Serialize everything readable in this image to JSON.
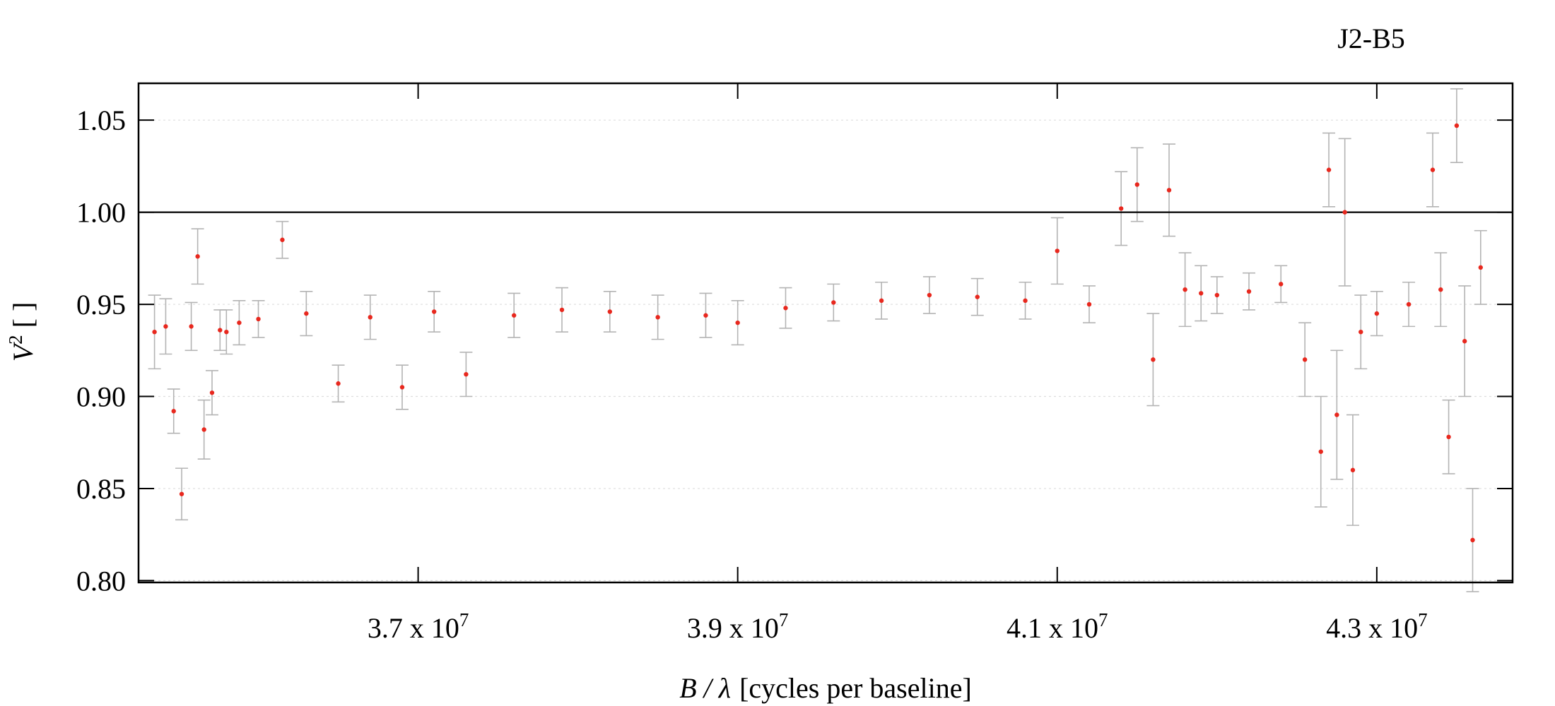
{
  "chart_data": {
    "type": "scatter",
    "title": "J2-B5",
    "xlabel": {
      "var": "B / λ",
      "unit": "[cycles per baseline]"
    },
    "ylabel": {
      "var": "V",
      "sup": "2",
      "unit": "[ ]"
    },
    "xlim": [
      35250000,
      43850000
    ],
    "ylim": [
      0.799,
      1.07
    ],
    "x_ticks": [
      {
        "value": 37000000,
        "mantissa": "3.7",
        "times": " x 10",
        "exp": "7"
      },
      {
        "value": 39000000,
        "mantissa": "3.9",
        "times": " x 10",
        "exp": "7"
      },
      {
        "value": 41000000,
        "mantissa": "4.1",
        "times": " x 10",
        "exp": "7"
      },
      {
        "value": 43000000,
        "mantissa": "4.3",
        "times": " x 10",
        "exp": "7"
      }
    ],
    "y_ticks": [
      "0.80",
      "0.85",
      "0.90",
      "0.95",
      "1.00",
      "1.05"
    ],
    "reference_line": 1.0,
    "grid": true,
    "colors": {
      "points": "#e8281e",
      "errorbars": "#b4b4b4",
      "axes": "#000000",
      "grid": "#dddddd"
    },
    "series": [
      {
        "x": [
          35350000,
          35420000,
          35470000,
          35520000,
          35580000,
          35620000,
          35660000,
          35710000,
          35760000,
          35800000,
          35880000,
          36000000,
          36150000,
          36300000,
          36500000,
          36700000,
          36900000,
          37100000,
          37300000,
          37600000,
          37900000,
          38200000,
          38500000,
          38800000,
          39000000,
          39300000,
          39600000,
          39900000,
          40200000,
          40500000,
          40800000,
          41000000,
          41200000,
          41400000,
          41500000,
          41600000,
          41700000,
          41800000,
          41900000,
          42000000,
          42200000,
          42400000,
          42550000,
          42650000,
          42700000,
          42750000,
          42800000,
          42850000,
          42900000,
          43000000,
          43200000,
          43350000,
          43400000,
          43450000,
          43500000,
          43550000,
          43600000,
          43650000
        ],
        "y": [
          0.935,
          0.938,
          0.892,
          0.847,
          0.938,
          0.976,
          0.882,
          0.902,
          0.936,
          0.935,
          0.94,
          0.942,
          0.985,
          0.945,
          0.907,
          0.943,
          0.905,
          0.946,
          0.912,
          0.944,
          0.947,
          0.946,
          0.943,
          0.944,
          0.94,
          0.948,
          0.951,
          0.952,
          0.955,
          0.954,
          0.952,
          0.979,
          0.95,
          1.002,
          1.015,
          0.92,
          1.012,
          0.958,
          0.956,
          0.955,
          0.957,
          0.961,
          0.92,
          0.87,
          1.023,
          0.89,
          1.0,
          0.86,
          0.935,
          0.945,
          0.95,
          1.023,
          0.958,
          0.878,
          1.047,
          0.93,
          0.822,
          0.97
        ],
        "yerr": [
          0.02,
          0.015,
          0.012,
          0.014,
          0.013,
          0.015,
          0.016,
          0.012,
          0.011,
          0.012,
          0.012,
          0.01,
          0.01,
          0.012,
          0.01,
          0.012,
          0.012,
          0.011,
          0.012,
          0.012,
          0.012,
          0.011,
          0.012,
          0.012,
          0.012,
          0.011,
          0.01,
          0.01,
          0.01,
          0.01,
          0.01,
          0.018,
          0.01,
          0.02,
          0.02,
          0.025,
          0.025,
          0.02,
          0.015,
          0.01,
          0.01,
          0.01,
          0.02,
          0.03,
          0.02,
          0.035,
          0.04,
          0.03,
          0.02,
          0.012,
          0.012,
          0.02,
          0.02,
          0.02,
          0.02,
          0.03,
          0.028,
          0.02
        ]
      }
    ]
  }
}
